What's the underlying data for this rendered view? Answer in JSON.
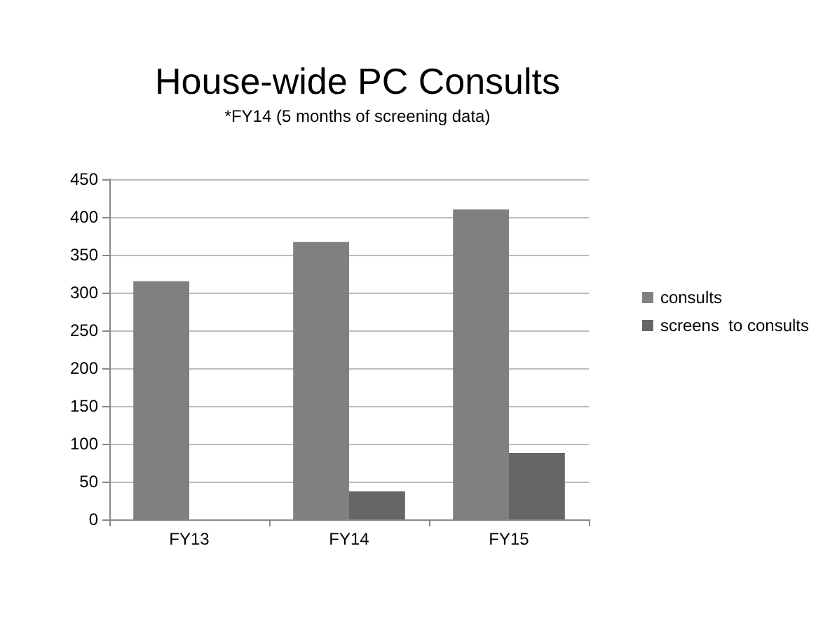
{
  "chart_data": {
    "type": "bar",
    "title": "House-wide PC Consults",
    "subtitle": "*FY14 (5 months of screening data)",
    "categories": [
      "FY13",
      "FY14",
      "FY15"
    ],
    "series": [
      {
        "name": "consults",
        "color": "#808080",
        "values": [
          315,
          367,
          410
        ]
      },
      {
        "name": "screens  to consults",
        "color": "#666666",
        "values": [
          null,
          37,
          88
        ]
      }
    ],
    "ylim": [
      0,
      450
    ],
    "yticks": [
      0,
      50,
      100,
      150,
      200,
      250,
      300,
      350,
      400,
      450
    ],
    "grid": "y",
    "legend": "right"
  }
}
